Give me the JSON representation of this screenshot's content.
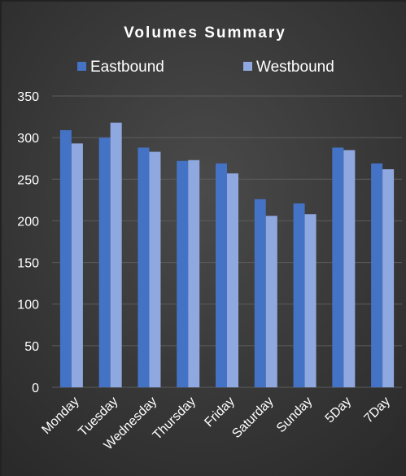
{
  "chart_data": {
    "type": "bar",
    "title": "Volumes Summary",
    "xlabel": "",
    "ylabel": "",
    "categories": [
      "Monday",
      "Tuesday",
      "Wednesday",
      "Thursday",
      "Friday",
      "Saturday",
      "Sunday",
      "5Day",
      "7Day"
    ],
    "series": [
      {
        "name": "Eastbound",
        "values": [
          309,
          300,
          288,
          272,
          269,
          226,
          221,
          288,
          269
        ],
        "color": "#4472c4"
      },
      {
        "name": "Westbound",
        "values": [
          293,
          318,
          283,
          273,
          257,
          206,
          208,
          285,
          262
        ],
        "color": "#8fa9e0"
      }
    ],
    "ylim": [
      0,
      350
    ],
    "yticks": [
      "0",
      "50",
      "100",
      "150",
      "200",
      "250",
      "300",
      "350"
    ],
    "grid": true,
    "legend": "top",
    "colors": {
      "background": "#3a3a3a",
      "gridline": "#5c5c5c",
      "text": "#ffffff"
    }
  }
}
